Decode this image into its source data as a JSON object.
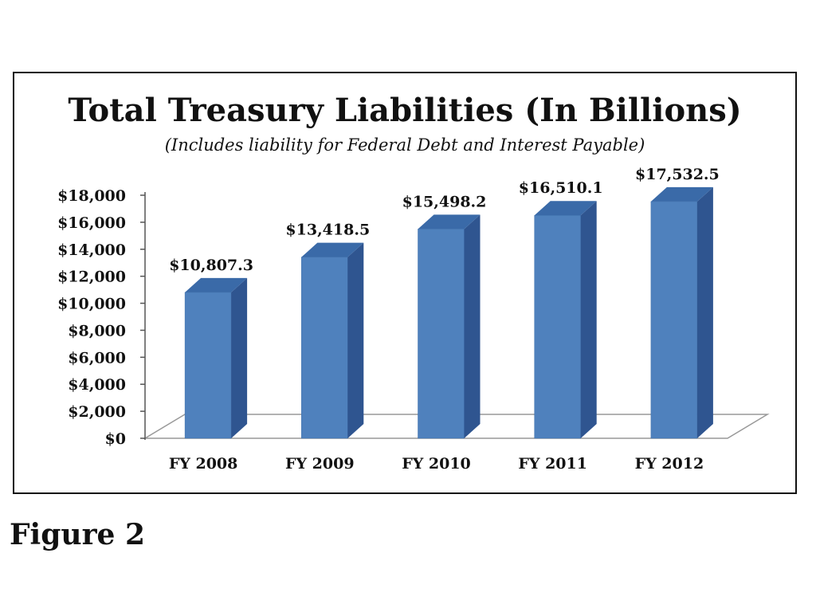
{
  "figure_caption": "Figure 2",
  "chart_data": {
    "type": "bar",
    "title": "Total Treasury Liabilities (In Billions)",
    "subtitle": "(Includes liability for Federal Debt and Interest Payable)",
    "categories": [
      "FY 2008",
      "FY 2009",
      "FY 2010",
      "FY 2011",
      "FY 2012"
    ],
    "values": [
      10807.3,
      13418.5,
      15498.2,
      16510.1,
      17532.5
    ],
    "data_labels": [
      "$10,807.3",
      "$13,418.5",
      "$15,498.2",
      "$16,510.1",
      "$17,532.5"
    ],
    "y_ticks": [
      0,
      2000,
      4000,
      6000,
      8000,
      10000,
      12000,
      14000,
      16000,
      18000
    ],
    "y_tick_labels": [
      "$0",
      "$2,000",
      "$4,000",
      "$6,000",
      "$8,000",
      "$10,000",
      "$12,000",
      "$14,000",
      "$16,000",
      "$18,000"
    ],
    "ylim": [
      0,
      18000
    ],
    "xlabel": "",
    "ylabel": "",
    "grid": false,
    "legend": "none",
    "style": "3d-column",
    "colors": {
      "bar_front": "#4f81bd",
      "bar_side": "#2f5590",
      "bar_top": "#3a6aa8",
      "floor": "#ffffff",
      "text": "#111111"
    }
  }
}
